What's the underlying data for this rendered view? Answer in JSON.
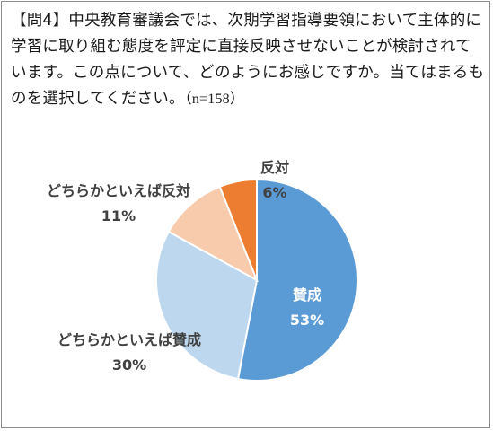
{
  "question": {
    "text": "【問4】中央教育審議会では、次期学習指導要領において主体的に学習に取り組む態度を評定に直接反映させないことが検討されています。この点について、どのようにお感じですか。当てはまるものを選択してください。",
    "n": "（n=158）"
  },
  "chart_data": {
    "type": "pie",
    "title": "",
    "start_angle_deg": 90,
    "direction": "clockwise",
    "slices": [
      {
        "label": "賛成",
        "value": 53,
        "display": "53%",
        "color": "#5b9bd5",
        "label_color": "#ffffff"
      },
      {
        "label": "どちらかといえば賛成",
        "value": 30,
        "display": "30%",
        "color": "#bdd7ee",
        "label_color": "#404040"
      },
      {
        "label": "どちらかといえば反対",
        "value": 11,
        "display": "11%",
        "color": "#f8cbad",
        "label_color": "#404040"
      },
      {
        "label": "反対",
        "value": 6,
        "display": "6%",
        "color": "#ed7d31",
        "label_color": "#404040"
      }
    ]
  }
}
